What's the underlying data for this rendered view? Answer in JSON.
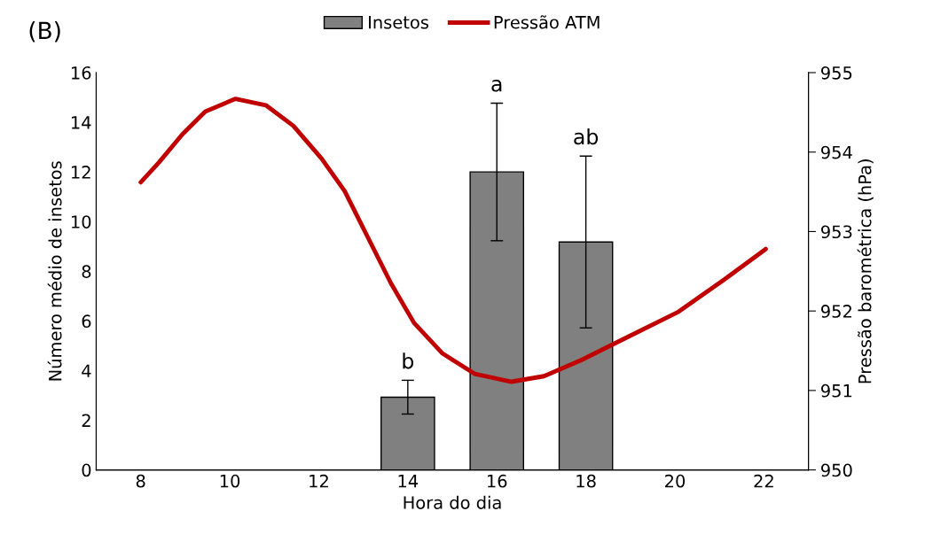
{
  "chart_data": {
    "type": "bar",
    "title": "(B)",
    "xlabel": "Hora do dia",
    "ylabel": "Número médio de insetos",
    "y2label": "Pressão barométrica (hPa)",
    "x": [
      8,
      10,
      12,
      14,
      16,
      18,
      20,
      22
    ],
    "series": [
      {
        "name": "Insetos",
        "color": "#808080",
        "values": [
          0,
          0,
          0,
          2.93,
          12.0,
          9.18,
          0,
          0
        ],
        "errors": [
          null,
          null,
          null,
          0.68,
          2.77,
          3.46,
          null,
          null
        ]
      },
      {
        "name": "Pressão ATM",
        "type": "line",
        "axis": "y2",
        "color": "#c00000",
        "x": [
          8,
          8.41,
          8.93,
          9.45,
          10.13,
          10.81,
          11.43,
          12.06,
          12.58,
          13.1,
          13.62,
          14.14,
          14.77,
          15.5,
          16.33,
          17.06,
          17.89,
          18.93,
          20.08,
          21.12,
          22.04
        ],
        "values": [
          953.62,
          953.87,
          954.22,
          954.51,
          954.67,
          954.59,
          954.33,
          953.92,
          953.51,
          952.93,
          952.35,
          951.85,
          951.47,
          951.21,
          951.11,
          951.18,
          951.38,
          951.67,
          951.99,
          952.4,
          952.78
        ]
      }
    ],
    "xlim": [
      7,
      23
    ],
    "xticks": [
      8,
      10,
      12,
      14,
      16,
      18,
      20,
      22
    ],
    "ylim": [
      0,
      16
    ],
    "yticks": [
      0,
      2,
      4,
      6,
      8,
      10,
      12,
      14,
      16
    ],
    "y2lim": [
      950,
      955
    ],
    "y2ticks": [
      950,
      951,
      952,
      953,
      954,
      955
    ],
    "annotations": [
      {
        "text": "b",
        "x": 14,
        "y": 3.61
      },
      {
        "text": "a",
        "x": 16,
        "y": 14.77
      },
      {
        "text": "ab",
        "x": 18,
        "y": 12.64
      }
    ],
    "legend": "top",
    "grid": false
  }
}
